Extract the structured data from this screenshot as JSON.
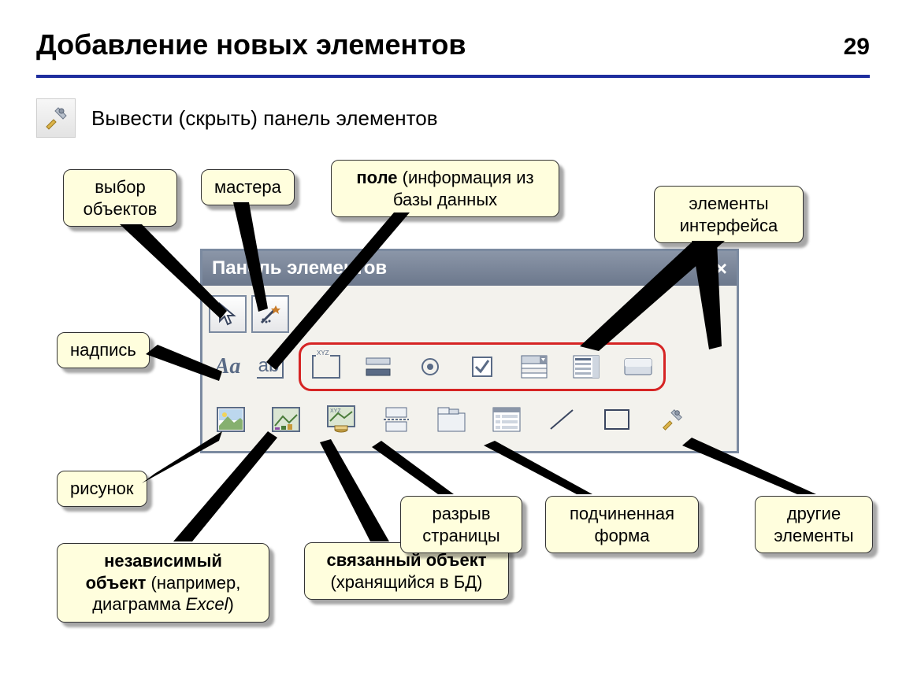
{
  "page": {
    "title": "Добавление новых элементов",
    "number": "29"
  },
  "intro": {
    "text": "Вывести (скрыть) панель элементов"
  },
  "panel": {
    "title": "Панель элементов"
  },
  "callouts": {
    "c1": "выбор\nобъектов",
    "c2": "мастера",
    "c3_bold": "поле",
    "c3_rest": " (информация из\nбазы данных",
    "c4": "элементы\nинтерфейса",
    "c5": "надпись",
    "c6": "рисунок",
    "c7_bold": "независимый\nобъект",
    "c7_rest": " (например,\nдиаграмма Excel)",
    "c8_bold": "связанный объект",
    "c8_rest": "\n(хранящийся в БД)",
    "c9": "разрыв\nстраницы",
    "c10": "подчиненная\nформа",
    "c11": "другие\nэлементы"
  },
  "style": {
    "callout_bg": "#fffedd",
    "callout_border": "#333333",
    "highlight_border": "#d62424",
    "divider_color": "#1f2e9e"
  }
}
